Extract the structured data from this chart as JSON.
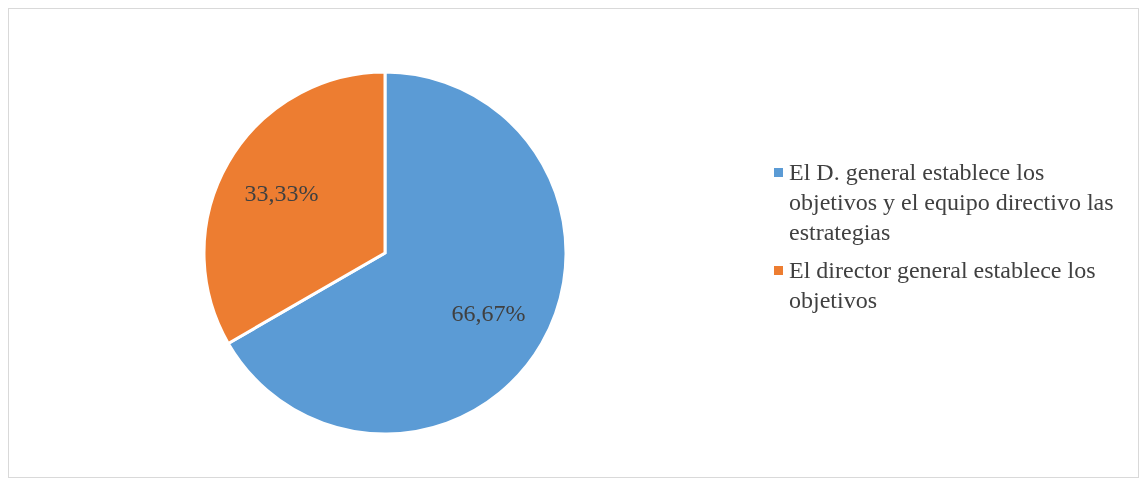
{
  "chart_data": {
    "type": "pie",
    "categories": [
      "El D. general establece los objetivos y el equipo directivo las estrategias",
      "El director general establece los objetivos"
    ],
    "values": [
      66.67,
      33.33
    ],
    "colors": [
      "#5b9bd5",
      "#ed7d31"
    ],
    "value_labels": [
      "66,67%",
      "33,33%"
    ],
    "legend": "right"
  }
}
